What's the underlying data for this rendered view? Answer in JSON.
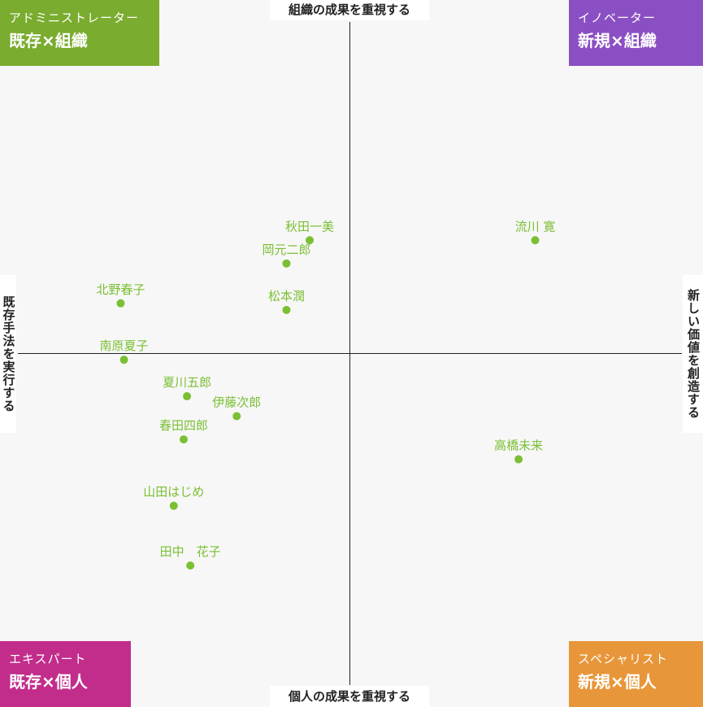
{
  "chart_data": {
    "type": "scatter",
    "title": "",
    "axes": {
      "top": "組織の成果を重視する",
      "bottom": "個人の成果を重視する",
      "left": "既存手法を実行する",
      "right": "新しい価値を創造する"
    },
    "xlim": [
      -10,
      10
    ],
    "ylim": [
      -10,
      10
    ],
    "grid": false,
    "points": [
      {
        "name": "秋田一美",
        "x": -1.2,
        "y": 3.4
      },
      {
        "name": "岡元二郎",
        "x": -1.9,
        "y": 2.7
      },
      {
        "name": "流川 寛",
        "x": 5.6,
        "y": 3.4
      },
      {
        "name": "北野春子",
        "x": -6.9,
        "y": 1.5
      },
      {
        "name": "松本潤",
        "x": -1.9,
        "y": 1.3
      },
      {
        "name": "南原夏子",
        "x": -6.8,
        "y": -0.2
      },
      {
        "name": "夏川五郎",
        "x": -4.9,
        "y": -1.3
      },
      {
        "name": "伊藤次郎",
        "x": -3.4,
        "y": -1.9
      },
      {
        "name": "春田四郎",
        "x": -5.0,
        "y": -2.6
      },
      {
        "name": "高橋未来",
        "x": 5.1,
        "y": -3.2
      },
      {
        "name": "山田はじめ",
        "x": -5.3,
        "y": -4.6
      },
      {
        "name": "田中　花子",
        "x": -4.8,
        "y": -6.4
      }
    ]
  },
  "quadrants": {
    "top_left": {
      "sub": "アドミニストレーター",
      "main": "既存×組織",
      "color": "#7aac2f"
    },
    "top_right": {
      "sub": "イノベーター",
      "main": "新規×組織",
      "color": "#8b4fc4"
    },
    "bottom_left": {
      "sub": "エキスパート",
      "main": "既存×個人",
      "color": "#c22d8b"
    },
    "bottom_right": {
      "sub": "スペシャリスト",
      "main": "新規×個人",
      "color": "#e8963a"
    }
  },
  "point_color": "#7bbf34"
}
